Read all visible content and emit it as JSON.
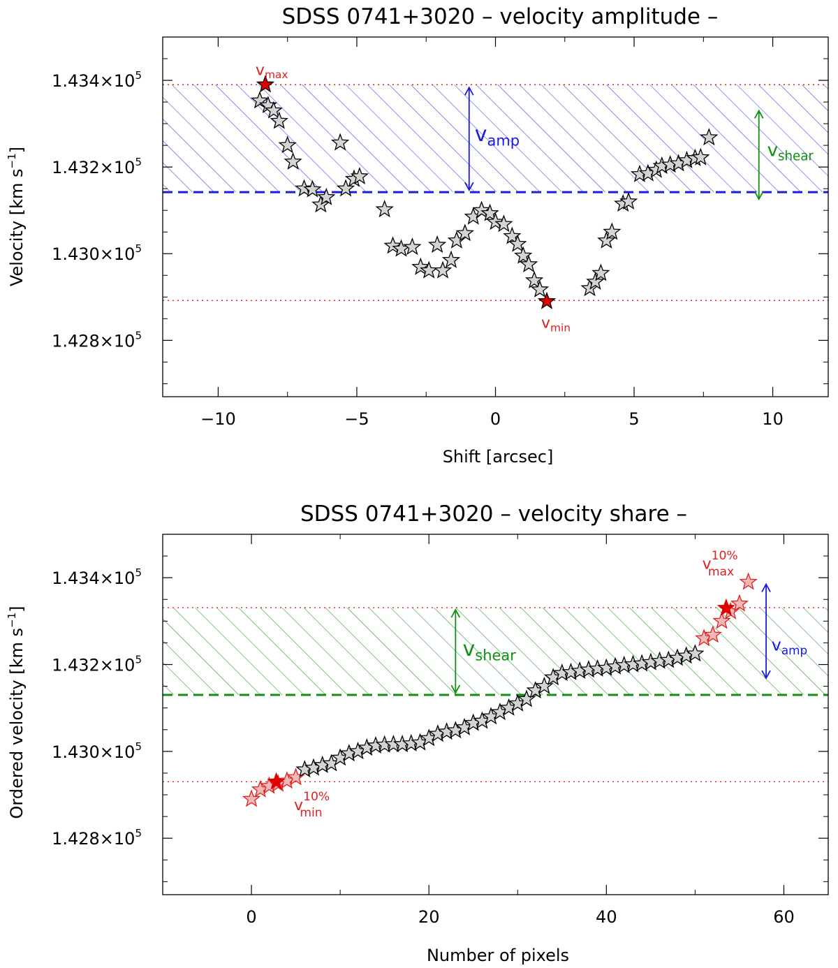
{
  "chart_data": [
    {
      "type": "scatter",
      "title": "SDSS 0741+3020 – velocity amplitude –",
      "xlabel": "Shift [arcsec]",
      "ylabel": "Velocity [km s",
      "ylabel_sup": "−1",
      "ylabel_end": "]",
      "xlim": [
        -12,
        12
      ],
      "ylim": [
        142670,
        143500
      ],
      "xticks": [
        -10,
        -5,
        0,
        5,
        10
      ],
      "xtick_labels": [
        "−10",
        "−5",
        "0",
        "5",
        "10"
      ],
      "yticks": [
        142800,
        143000,
        143200,
        143400
      ],
      "ytick_labels": [
        "1.428×10",
        "1.430×10",
        "1.432×10",
        "1.434×10"
      ],
      "ytick_exp": "5",
      "points": [
        [
          -8.5,
          143353
        ],
        [
          -8.2,
          143342
        ],
        [
          -8.0,
          143330
        ],
        [
          -7.8,
          143306
        ],
        [
          -7.5,
          143250
        ],
        [
          -7.3,
          143212
        ],
        [
          -6.9,
          143150
        ],
        [
          -6.6,
          143148
        ],
        [
          -6.3,
          143113
        ],
        [
          -6.1,
          143130
        ],
        [
          -5.6,
          143256
        ],
        [
          -5.4,
          143150
        ],
        [
          -5.1,
          143172
        ],
        [
          -4.9,
          143178
        ],
        [
          -4.0,
          143102
        ],
        [
          -3.7,
          143018
        ],
        [
          -3.4,
          143011
        ],
        [
          -3.0,
          143015
        ],
        [
          -2.7,
          142969
        ],
        [
          -2.4,
          142961
        ],
        [
          -2.1,
          143020
        ],
        [
          -1.9,
          142961
        ],
        [
          -1.6,
          142985
        ],
        [
          -1.4,
          143030
        ],
        [
          -1.1,
          143047
        ],
        [
          -0.8,
          143085
        ],
        [
          -0.5,
          143100
        ],
        [
          -0.2,
          143093
        ],
        [
          0.0,
          143073
        ],
        [
          0.3,
          143068
        ],
        [
          0.6,
          143040
        ],
        [
          0.8,
          143022
        ],
        [
          1.0,
          142995
        ],
        [
          1.2,
          142975
        ],
        [
          1.4,
          142938
        ],
        [
          1.6,
          142917
        ]
      ],
      "points2": [
        [
          3.4,
          142920
        ],
        [
          3.6,
          142935
        ],
        [
          3.8,
          142955
        ],
        [
          4.0,
          143030
        ],
        [
          4.2,
          143050
        ],
        [
          4.6,
          143115
        ],
        [
          4.8,
          143120
        ],
        [
          5.2,
          143183
        ],
        [
          5.5,
          143185
        ],
        [
          5.8,
          143193
        ],
        [
          6.0,
          143202
        ],
        [
          6.3,
          143205
        ],
        [
          6.6,
          143208
        ],
        [
          6.9,
          143215
        ],
        [
          7.2,
          143220
        ],
        [
          7.4,
          143222
        ],
        [
          7.7,
          143268
        ]
      ],
      "vmax_point": [
        -8.3,
        143390
      ],
      "vmin_point": [
        1.85,
        142890
      ],
      "vmax_line": 143390,
      "vmin_line": 142892,
      "mean_line": 143142,
      "labels": {
        "vmax": "v",
        "vmax_sub": "max",
        "vmin": "v",
        "vmin_sub": "min",
        "vamp": "v",
        "vamp_sub": "amp",
        "vshear": "v",
        "vshear_sub": "shear"
      },
      "colors": {
        "hatch": "#3a3ae0",
        "mean": "#1a1ae6",
        "limits": "#e02020",
        "shear": "#109010",
        "amp": "#1a1ae6",
        "star_fill": "#d4d4d4",
        "red_star": "#e00000"
      }
    },
    {
      "type": "scatter",
      "title": "SDSS 0741+3020 – velocity share –",
      "xlabel": "Number of pixels",
      "ylabel": "Ordered velocity [km s",
      "ylabel_sup": "−1",
      "ylabel_end": "]",
      "xlim": [
        -10,
        65
      ],
      "ylim": [
        142670,
        143500
      ],
      "xticks": [
        0,
        20,
        40,
        60
      ],
      "xtick_labels": [
        "0",
        "20",
        "40",
        "60"
      ],
      "yticks": [
        142800,
        143000,
        143200,
        143400
      ],
      "ytick_labels": [
        "1.428×10",
        "1.430×10",
        "1.432×10",
        "1.434×10"
      ],
      "ytick_exp": "5",
      "values": [
        142890,
        142912,
        142920,
        142925,
        142932,
        142940,
        142958,
        142962,
        142968,
        142972,
        142985,
        142995,
        143000,
        143008,
        143013,
        143015,
        143016,
        143016,
        143018,
        143020,
        143030,
        143040,
        143045,
        143048,
        143055,
        143065,
        143070,
        143080,
        143090,
        143100,
        143110,
        143120,
        143140,
        143150,
        143170,
        143180,
        143182,
        143185,
        143188,
        143190,
        143192,
        143195,
        143198,
        143200,
        143202,
        143205,
        143208,
        143210,
        143215,
        143220,
        143225,
        143260,
        143268,
        143300,
        143322,
        143340,
        143390
      ],
      "red_low_count": 6,
      "red_high_count": 6,
      "p10_low": [
        2.8,
        142930
      ],
      "p10_high": [
        53.5,
        143330
      ],
      "upper_line": 143331,
      "lower_line": 142930,
      "mean_line": 143130,
      "labels": {
        "vmax": "v",
        "vmax_sub": "max",
        "vmax_sup": "10%",
        "vmin": "v",
        "vmin_sub": "min",
        "vmin_sup": "10%",
        "vamp": "v",
        "vamp_sub": "amp",
        "vshear": "v",
        "vshear_sub": "shear"
      },
      "colors": {
        "hatch": "#1a9a1a",
        "mean": "#109010",
        "limits": "#e02020",
        "shear": "#109010",
        "amp": "#1a1ae6",
        "star_fill": "#d4d4d4",
        "red_star": "#e00000",
        "pink_star": "#f0b8b8"
      }
    }
  ]
}
